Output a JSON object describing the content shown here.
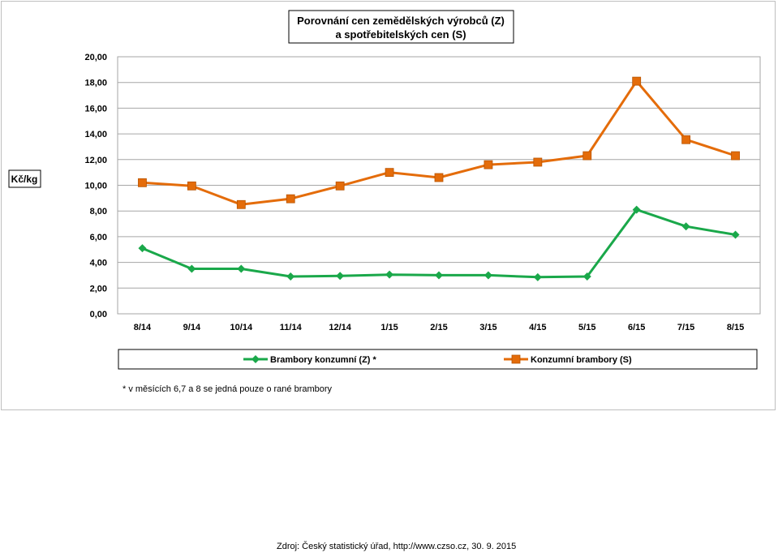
{
  "chart_data": {
    "type": "line",
    "title_line1": "Porovnání cen zemědělských výrobců (Z)",
    "title_line2": "a spotřebitelských cen (S)",
    "ylabel": "Kč/kg",
    "ylim": [
      0,
      20
    ],
    "y_ticks": [
      "0,00",
      "2,00",
      "4,00",
      "6,00",
      "8,00",
      "10,00",
      "12,00",
      "14,00",
      "16,00",
      "18,00",
      "20,00"
    ],
    "categories": [
      "8/14",
      "9/14",
      "10/14",
      "11/14",
      "12/14",
      "1/15",
      "2/15",
      "3/15",
      "4/15",
      "5/15",
      "6/15",
      "7/15",
      "8/15"
    ],
    "grid": true,
    "legend_position": "bottom",
    "series": [
      {
        "name": "Brambory konzumní (Z) *",
        "color": "#1aa84a",
        "marker": "diamond",
        "values": [
          5.1,
          3.5,
          3.5,
          2.9,
          2.95,
          3.05,
          3.0,
          3.0,
          2.85,
          2.9,
          8.1,
          6.8,
          6.15
        ]
      },
      {
        "name": "Konzumní brambory (S)",
        "color": "#e46c0a",
        "marker": "square",
        "values": [
          10.2,
          9.95,
          8.5,
          8.95,
          9.95,
          11.0,
          10.6,
          11.6,
          11.8,
          12.3,
          18.1,
          13.55,
          12.3
        ]
      }
    ],
    "footnote": "*  v měsících 6,7 a 8 se jedná pouze o rané brambory"
  },
  "source": "Zdroj: Český statistický úřad, http://www.czso.cz, 30. 9. 2015"
}
